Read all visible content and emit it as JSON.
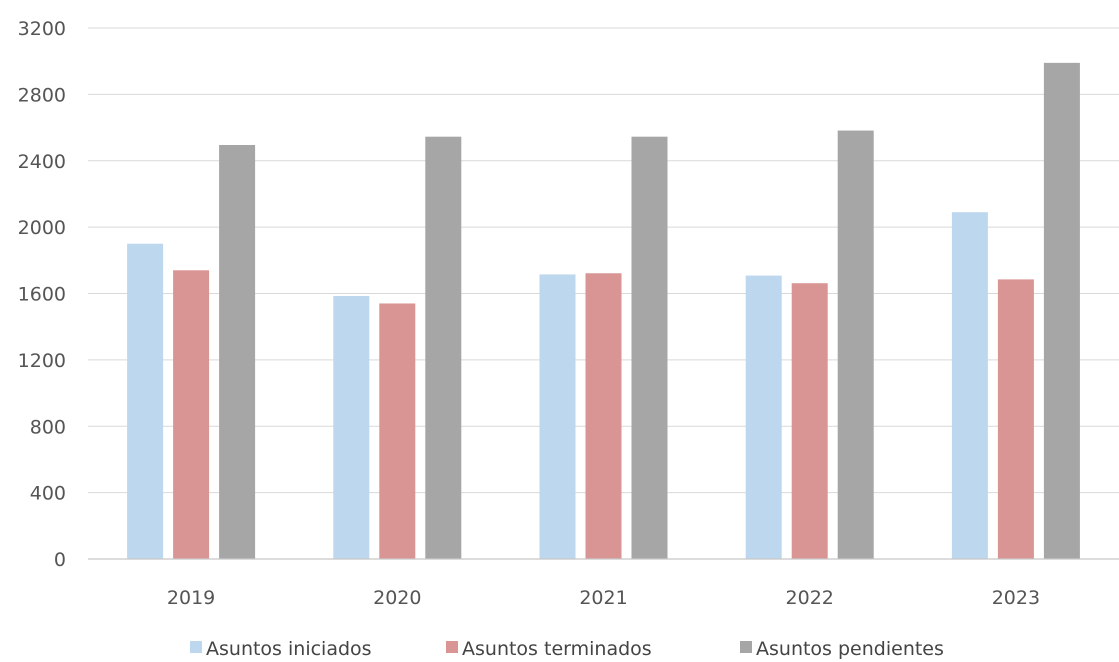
{
  "chart_data": {
    "type": "bar",
    "title": "",
    "xlabel": "",
    "ylabel": "",
    "categories": [
      "2019",
      "2020",
      "2021",
      "2022",
      "2023"
    ],
    "series": [
      {
        "name": "Asuntos iniciados",
        "color": "#bdd7ee",
        "values": [
          1900,
          1585,
          1715,
          1708,
          2090
        ]
      },
      {
        "name": "Asuntos terminados",
        "color": "#d99594",
        "values": [
          1740,
          1540,
          1722,
          1662,
          1685
        ]
      },
      {
        "name": "Asuntos pendientes",
        "color": "#a6a6a6",
        "values": [
          2495,
          2545,
          2545,
          2582,
          2990
        ]
      }
    ],
    "ylim": [
      0,
      3200
    ],
    "yticks": [
      "0",
      "400",
      "800",
      "1200",
      "1600",
      "2000",
      "2400",
      "2800",
      "3200"
    ],
    "grid": true,
    "legend_position": "bottom"
  }
}
